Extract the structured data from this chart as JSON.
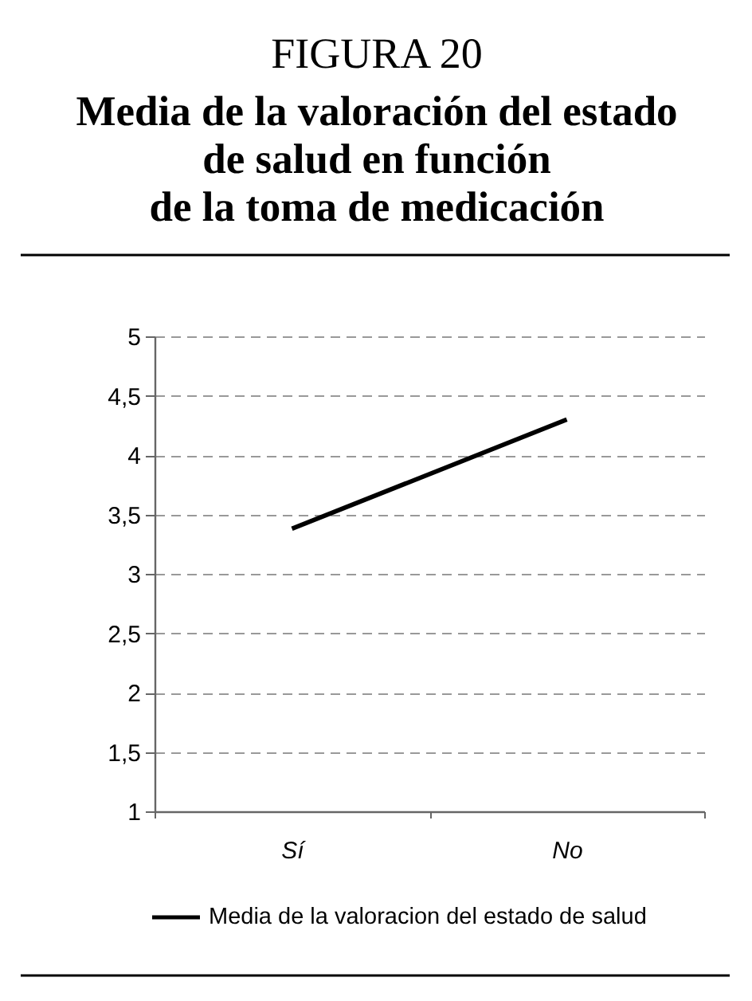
{
  "chart_data": {
    "type": "line",
    "title": "FIGURA 20",
    "subtitle": "Media de la valoración del estado\nde salud en función\nde la toma de medicación",
    "categories": [
      "Sí",
      "No"
    ],
    "series": [
      {
        "name": "Media de la valoracion del estado de salud",
        "color": "#000000",
        "values": [
          3.38,
          4.3
        ]
      }
    ],
    "ylim": [
      1,
      5
    ],
    "yticks": [
      1,
      {
        "value": 1.5,
        "label": "1,5"
      },
      2,
      {
        "value": 2.5,
        "label": "2,5"
      },
      3,
      {
        "value": 3.5,
        "label": "3,5"
      },
      4,
      {
        "value": 4.5,
        "label": "4,5"
      },
      5
    ],
    "grid": "y",
    "legend": "bottom",
    "marker": "none",
    "line_style": "solid"
  }
}
